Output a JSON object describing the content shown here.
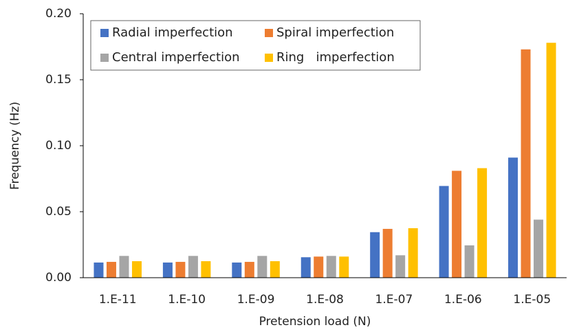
{
  "chart_data": {
    "type": "bar",
    "x_label": "Pretension load (N)",
    "y_label": "Frequency (Hz)",
    "categories": [
      "1.E-11",
      "1.E-10",
      "1.E-09",
      "1.E-08",
      "1.E-07",
      "1.E-06",
      "1.E-05"
    ],
    "series": [
      {
        "name": "Radial imperfection",
        "color": "#4472c4",
        "values": [
          0.0115,
          0.0115,
          0.0115,
          0.0155,
          0.0345,
          0.0695,
          0.091
        ]
      },
      {
        "name": "Spiral imperfection",
        "color": "#ed7d31",
        "values": [
          0.012,
          0.012,
          0.012,
          0.016,
          0.037,
          0.081,
          0.173
        ]
      },
      {
        "name": "Central imperfection",
        "color": "#a5a5a5",
        "values": [
          0.0165,
          0.0165,
          0.0165,
          0.0165,
          0.017,
          0.0245,
          0.044
        ]
      },
      {
        "name": "Ring   imperfection",
        "color": "#ffc000",
        "values": [
          0.0125,
          0.0125,
          0.0125,
          0.016,
          0.0375,
          0.083,
          0.178
        ]
      }
    ],
    "ylim": [
      0,
      0.2
    ],
    "yticks": [
      {
        "value": 0,
        "label": "0.00"
      },
      0.05,
      {
        "value": 0.1,
        "label": "0.10"
      },
      0.15,
      {
        "value": 0.2,
        "label": "0.20"
      }
    ],
    "grid": false,
    "legend": "top-left"
  }
}
